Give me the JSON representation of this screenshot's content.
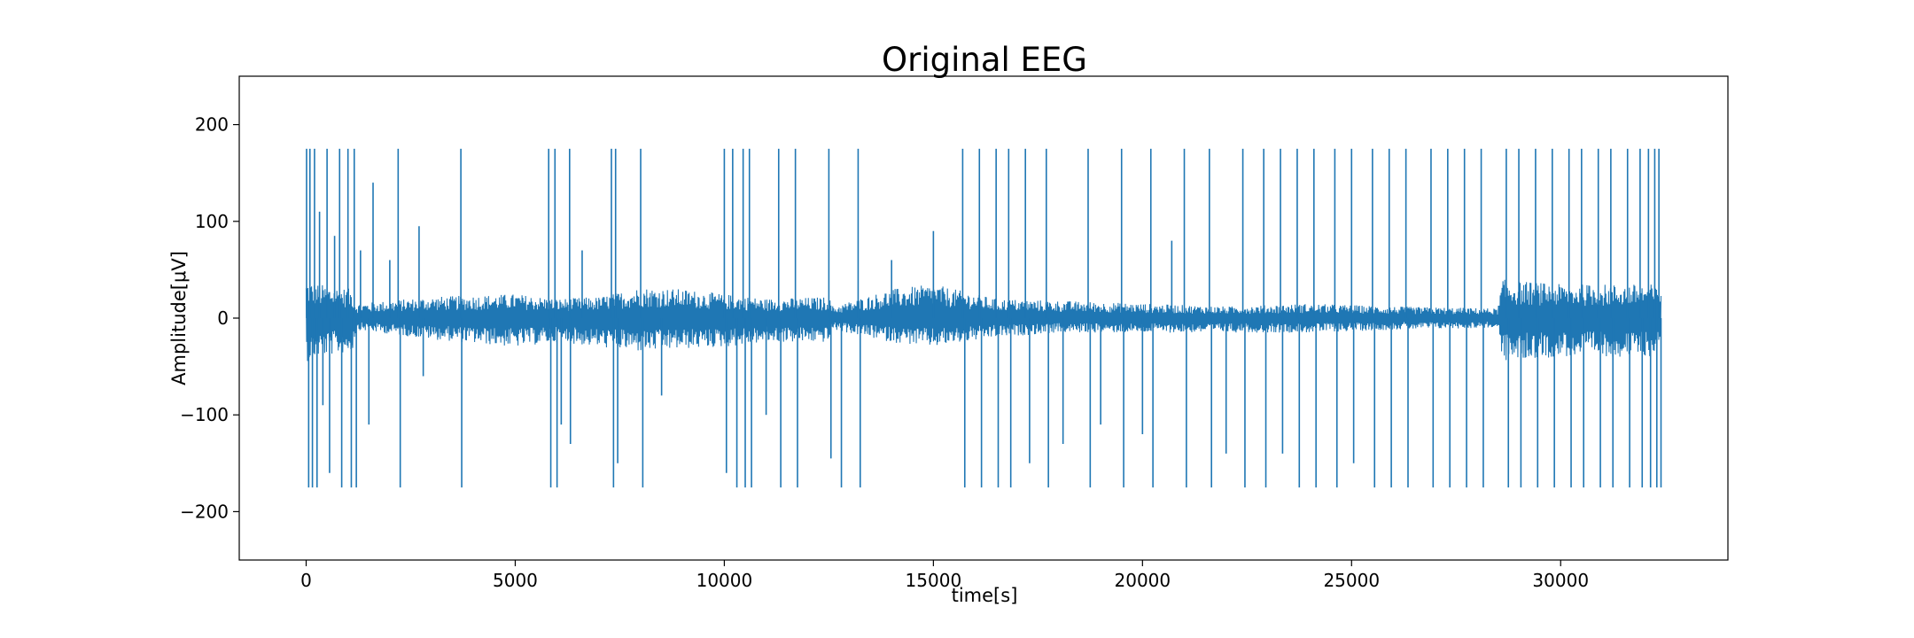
{
  "chart_data": {
    "type": "line",
    "title": "Original EEG",
    "xlabel": "time[s]",
    "ylabel": "Amplitude[μV]",
    "xlim": [
      -1600,
      34000
    ],
    "ylim": [
      -250,
      250
    ],
    "x_ticks": [
      0,
      5000,
      10000,
      15000,
      20000,
      25000,
      30000
    ],
    "y_ticks": [
      -200,
      -100,
      0,
      100,
      200
    ],
    "x_tick_labels": [
      "0",
      "5000",
      "10000",
      "15000",
      "20000",
      "25000",
      "30000"
    ],
    "y_tick_labels": [
      "−200",
      "−100",
      "0",
      "100",
      "200"
    ],
    "grid": false,
    "series": [
      {
        "color": "#1f77b4",
        "x_range": [
          0,
          32400
        ],
        "clip_limits": [
          -175,
          175
        ],
        "envelope": {
          "x": [
            0,
            300,
            1100,
            1200,
            3000,
            5000,
            6000,
            7000,
            8000,
            9000,
            10000,
            11000,
            12500,
            12600,
            14000,
            15000,
            16500,
            18000,
            20000,
            22000,
            24000,
            26000,
            28500,
            28600,
            30000,
            32400
          ],
          "upper": [
            40,
            35,
            30,
            15,
            22,
            25,
            20,
            22,
            32,
            30,
            25,
            20,
            22,
            12,
            30,
            35,
            20,
            18,
            15,
            12,
            15,
            12,
            10,
            40,
            35,
            35
          ],
          "lower": [
            -45,
            -40,
            -35,
            -12,
            -22,
            -30,
            -25,
            -30,
            -35,
            -32,
            -30,
            -25,
            -25,
            -12,
            -25,
            -30,
            -20,
            -15,
            -15,
            -15,
            -15,
            -12,
            -10,
            -45,
            -40,
            -40
          ]
        },
        "spikes": [
          {
            "x": 10,
            "y": 175
          },
          {
            "x": 60,
            "y": -175
          },
          {
            "x": 90,
            "y": 175
          },
          {
            "x": 150,
            "y": -175
          },
          {
            "x": 200,
            "y": 175
          },
          {
            "x": 260,
            "y": -175
          },
          {
            "x": 320,
            "y": 110
          },
          {
            "x": 400,
            "y": -90
          },
          {
            "x": 500,
            "y": 175
          },
          {
            "x": 560,
            "y": -160
          },
          {
            "x": 680,
            "y": 85
          },
          {
            "x": 800,
            "y": 175
          },
          {
            "x": 850,
            "y": -175
          },
          {
            "x": 1000,
            "y": 175
          },
          {
            "x": 1080,
            "y": -175
          },
          {
            "x": 1150,
            "y": 175
          },
          {
            "x": 1200,
            "y": -175
          },
          {
            "x": 1300,
            "y": 70
          },
          {
            "x": 1500,
            "y": -110
          },
          {
            "x": 1600,
            "y": 140
          },
          {
            "x": 2000,
            "y": 60
          },
          {
            "x": 2200,
            "y": 175
          },
          {
            "x": 2250,
            "y": -175
          },
          {
            "x": 2700,
            "y": 95
          },
          {
            "x": 2800,
            "y": -60
          },
          {
            "x": 3700,
            "y": 175
          },
          {
            "x": 3720,
            "y": -175
          },
          {
            "x": 5800,
            "y": 175
          },
          {
            "x": 5850,
            "y": -175
          },
          {
            "x": 5950,
            "y": 175
          },
          {
            "x": 6000,
            "y": -175
          },
          {
            "x": 6100,
            "y": -110
          },
          {
            "x": 6300,
            "y": 175
          },
          {
            "x": 6320,
            "y": -130
          },
          {
            "x": 6600,
            "y": 70
          },
          {
            "x": 7300,
            "y": 175
          },
          {
            "x": 7350,
            "y": -175
          },
          {
            "x": 7400,
            "y": 175
          },
          {
            "x": 7450,
            "y": -150
          },
          {
            "x": 8000,
            "y": 175
          },
          {
            "x": 8050,
            "y": -175
          },
          {
            "x": 8500,
            "y": -80
          },
          {
            "x": 10000,
            "y": 175
          },
          {
            "x": 10050,
            "y": -160
          },
          {
            "x": 10200,
            "y": 175
          },
          {
            "x": 10300,
            "y": -175
          },
          {
            "x": 10450,
            "y": 175
          },
          {
            "x": 10500,
            "y": -175
          },
          {
            "x": 10600,
            "y": 175
          },
          {
            "x": 10650,
            "y": -175
          },
          {
            "x": 11000,
            "y": -100
          },
          {
            "x": 11300,
            "y": 175
          },
          {
            "x": 11350,
            "y": -175
          },
          {
            "x": 11700,
            "y": 175
          },
          {
            "x": 11750,
            "y": -175
          },
          {
            "x": 12500,
            "y": 175
          },
          {
            "x": 12550,
            "y": -145
          },
          {
            "x": 12800,
            "y": -175
          },
          {
            "x": 13200,
            "y": 175
          },
          {
            "x": 13250,
            "y": -175
          },
          {
            "x": 14000,
            "y": 60
          },
          {
            "x": 15000,
            "y": 90
          },
          {
            "x": 15700,
            "y": 175
          },
          {
            "x": 15750,
            "y": -175
          },
          {
            "x": 16100,
            "y": 175
          },
          {
            "x": 16150,
            "y": -175
          },
          {
            "x": 16500,
            "y": 175
          },
          {
            "x": 16550,
            "y": -175
          },
          {
            "x": 16800,
            "y": 175
          },
          {
            "x": 16850,
            "y": -175
          },
          {
            "x": 17200,
            "y": 175
          },
          {
            "x": 17300,
            "y": -150
          },
          {
            "x": 17700,
            "y": 175
          },
          {
            "x": 17750,
            "y": -175
          },
          {
            "x": 18100,
            "y": -130
          },
          {
            "x": 18700,
            "y": 175
          },
          {
            "x": 18750,
            "y": -175
          },
          {
            "x": 19000,
            "y": -110
          },
          {
            "x": 19500,
            "y": 175
          },
          {
            "x": 19550,
            "y": -175
          },
          {
            "x": 20000,
            "y": -120
          },
          {
            "x": 20200,
            "y": 175
          },
          {
            "x": 20250,
            "y": -175
          },
          {
            "x": 20700,
            "y": 80
          },
          {
            "x": 21000,
            "y": 175
          },
          {
            "x": 21050,
            "y": -175
          },
          {
            "x": 21600,
            "y": 175
          },
          {
            "x": 21650,
            "y": -175
          },
          {
            "x": 22000,
            "y": -140
          },
          {
            "x": 22400,
            "y": 175
          },
          {
            "x": 22450,
            "y": -175
          },
          {
            "x": 22900,
            "y": 175
          },
          {
            "x": 22950,
            "y": -175
          },
          {
            "x": 23300,
            "y": 175
          },
          {
            "x": 23350,
            "y": -140
          },
          {
            "x": 23700,
            "y": 175
          },
          {
            "x": 23750,
            "y": -175
          },
          {
            "x": 24100,
            "y": 175
          },
          {
            "x": 24150,
            "y": -175
          },
          {
            "x": 24600,
            "y": 175
          },
          {
            "x": 24650,
            "y": -175
          },
          {
            "x": 25000,
            "y": 175
          },
          {
            "x": 25050,
            "y": -150
          },
          {
            "x": 25500,
            "y": 175
          },
          {
            "x": 25550,
            "y": -175
          },
          {
            "x": 25900,
            "y": 175
          },
          {
            "x": 25950,
            "y": -175
          },
          {
            "x": 26300,
            "y": 175
          },
          {
            "x": 26350,
            "y": -175
          },
          {
            "x": 26900,
            "y": 175
          },
          {
            "x": 26950,
            "y": -175
          },
          {
            "x": 27300,
            "y": 175
          },
          {
            "x": 27350,
            "y": -175
          },
          {
            "x": 27700,
            "y": 175
          },
          {
            "x": 27750,
            "y": -175
          },
          {
            "x": 28100,
            "y": 175
          },
          {
            "x": 28150,
            "y": -175
          },
          {
            "x": 28700,
            "y": 175
          },
          {
            "x": 28750,
            "y": -175
          },
          {
            "x": 29000,
            "y": 175
          },
          {
            "x": 29050,
            "y": -175
          },
          {
            "x": 29400,
            "y": 175
          },
          {
            "x": 29450,
            "y": -175
          },
          {
            "x": 29800,
            "y": 175
          },
          {
            "x": 29850,
            "y": -175
          },
          {
            "x": 30200,
            "y": 175
          },
          {
            "x": 30250,
            "y": -175
          },
          {
            "x": 30500,
            "y": 175
          },
          {
            "x": 30550,
            "y": -175
          },
          {
            "x": 30900,
            "y": 175
          },
          {
            "x": 30950,
            "y": -175
          },
          {
            "x": 31200,
            "y": 175
          },
          {
            "x": 31250,
            "y": -175
          },
          {
            "x": 31600,
            "y": 175
          },
          {
            "x": 31650,
            "y": -175
          },
          {
            "x": 31900,
            "y": 175
          },
          {
            "x": 31950,
            "y": -175
          },
          {
            "x": 32100,
            "y": 175
          },
          {
            "x": 32150,
            "y": -175
          },
          {
            "x": 32250,
            "y": 175
          },
          {
            "x": 32300,
            "y": -175
          },
          {
            "x": 32350,
            "y": 175
          },
          {
            "x": 32400,
            "y": -175
          }
        ]
      }
    ]
  }
}
